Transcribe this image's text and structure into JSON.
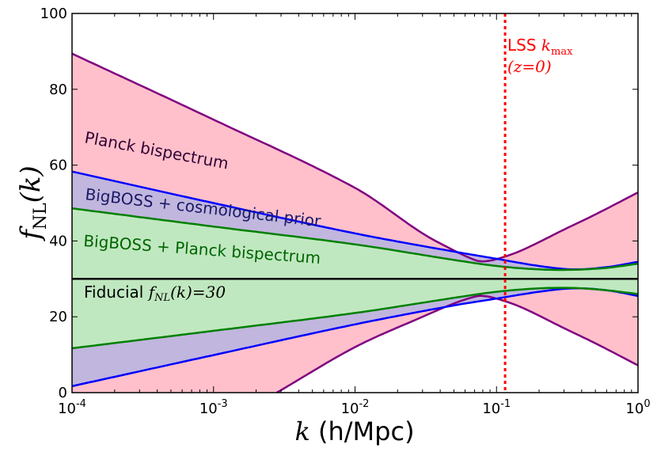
{
  "chart_data": {
    "type": "area",
    "x_scale": "log",
    "xlim": [
      0.0001,
      1
    ],
    "ylim": [
      0,
      100
    ],
    "xlabel_var": "k",
    "xlabel_units": " (h/Mpc)",
    "ylabel_f": "f",
    "ylabel_sub": "NL",
    "ylabel_arg": "(k)",
    "x_ticks": [
      {
        "value": 0.0001,
        "base": "10",
        "exp": "-4"
      },
      {
        "value": 0.001,
        "base": "10",
        "exp": "-3"
      },
      {
        "value": 0.01,
        "base": "10",
        "exp": "-2"
      },
      {
        "value": 0.1,
        "base": "10",
        "exp": "-1"
      },
      {
        "value": 1,
        "base": "10",
        "exp": "0"
      }
    ],
    "y_ticks": [
      {
        "value": 0,
        "label": "0"
      },
      {
        "value": 20,
        "label": "20"
      },
      {
        "value": 40,
        "label": "40"
      },
      {
        "value": 60,
        "label": "60"
      },
      {
        "value": 80,
        "label": "80"
      },
      {
        "value": 100,
        "label": "100"
      }
    ],
    "fiducial": 30,
    "k_max": 0.115,
    "k_max_label": {
      "prefix": "LSS ",
      "var": "k",
      "sub": "max",
      "z": "(z=0)"
    },
    "series": [
      {
        "name": "Planck bispectrum",
        "fill": "#ffc0cb",
        "stroke": "#800080",
        "upper": [
          [
            0.0001,
            89.4
          ],
          [
            0.001,
            72
          ],
          [
            0.01,
            54
          ],
          [
            0.03,
            42
          ],
          [
            0.05,
            37.5
          ],
          [
            0.07,
            35
          ],
          [
            0.08,
            34.6
          ],
          [
            0.1,
            35.2
          ],
          [
            0.15,
            37.5
          ],
          [
            0.3,
            43
          ],
          [
            0.5,
            47
          ],
          [
            1,
            52.8
          ]
        ],
        "lower": [
          [
            0.0028,
            0
          ],
          [
            0.01,
            12
          ],
          [
            0.03,
            20
          ],
          [
            0.05,
            23.5
          ],
          [
            0.07,
            25.3
          ],
          [
            0.08,
            25.5
          ],
          [
            0.1,
            24.8
          ],
          [
            0.15,
            22.5
          ],
          [
            0.3,
            17
          ],
          [
            0.5,
            13
          ],
          [
            1,
            7.2
          ]
        ]
      },
      {
        "name": "BigBOSS + cosmological prior",
        "fill": "#c1b6de",
        "stroke": "#0000ff",
        "upper": [
          [
            0.0001,
            58.3
          ],
          [
            0.001,
            50
          ],
          [
            0.01,
            42
          ],
          [
            0.05,
            37.2
          ],
          [
            0.1,
            35.3
          ],
          [
            0.2,
            33.4
          ],
          [
            0.35,
            32.5
          ],
          [
            0.6,
            33.1
          ],
          [
            1,
            34.5
          ]
        ],
        "lower": [
          [
            0.0001,
            1.7
          ],
          [
            0.001,
            9.9
          ],
          [
            0.01,
            18
          ],
          [
            0.05,
            23
          ],
          [
            0.1,
            24.8
          ],
          [
            0.2,
            26.6
          ],
          [
            0.35,
            27.5
          ],
          [
            0.6,
            27
          ],
          [
            1,
            25.5
          ]
        ]
      },
      {
        "name": "BigBOSS + Planck bispectrum",
        "fill": "#c0e8c0",
        "stroke": "#008000",
        "upper": [
          [
            0.0001,
            48.6
          ],
          [
            0.001,
            43.8
          ],
          [
            0.01,
            39.1
          ],
          [
            0.05,
            35
          ],
          [
            0.1,
            33.4
          ],
          [
            0.2,
            32.5
          ],
          [
            0.35,
            32.4
          ],
          [
            0.6,
            32.9
          ],
          [
            1,
            34
          ]
        ],
        "lower": [
          [
            0.0001,
            11.7
          ],
          [
            0.001,
            16.3
          ],
          [
            0.01,
            21
          ],
          [
            0.05,
            25
          ],
          [
            0.1,
            26.6
          ],
          [
            0.2,
            27.5
          ],
          [
            0.35,
            27.6
          ],
          [
            0.6,
            27
          ],
          [
            1,
            26
          ]
        ]
      }
    ],
    "annotations": [
      {
        "key": "planck",
        "text": "Planck bispectrum",
        "color": "#330033"
      },
      {
        "key": "bbcos",
        "text": "BigBOSS + cosmological prior",
        "color": "#1a1a66"
      },
      {
        "key": "bbplanck",
        "text": "BigBOSS + Planck bispectrum",
        "color": "#006400"
      },
      {
        "key": "fiducial",
        "text": "Fiducial ",
        "math_f": "f",
        "math_sub": "NL",
        "math_rest": "(k)=30",
        "color": "#000000"
      }
    ],
    "colors": {
      "fiducial_line": "#000000",
      "kmax_line": "#ff0000",
      "kmax_text": "#ff0000"
    }
  }
}
